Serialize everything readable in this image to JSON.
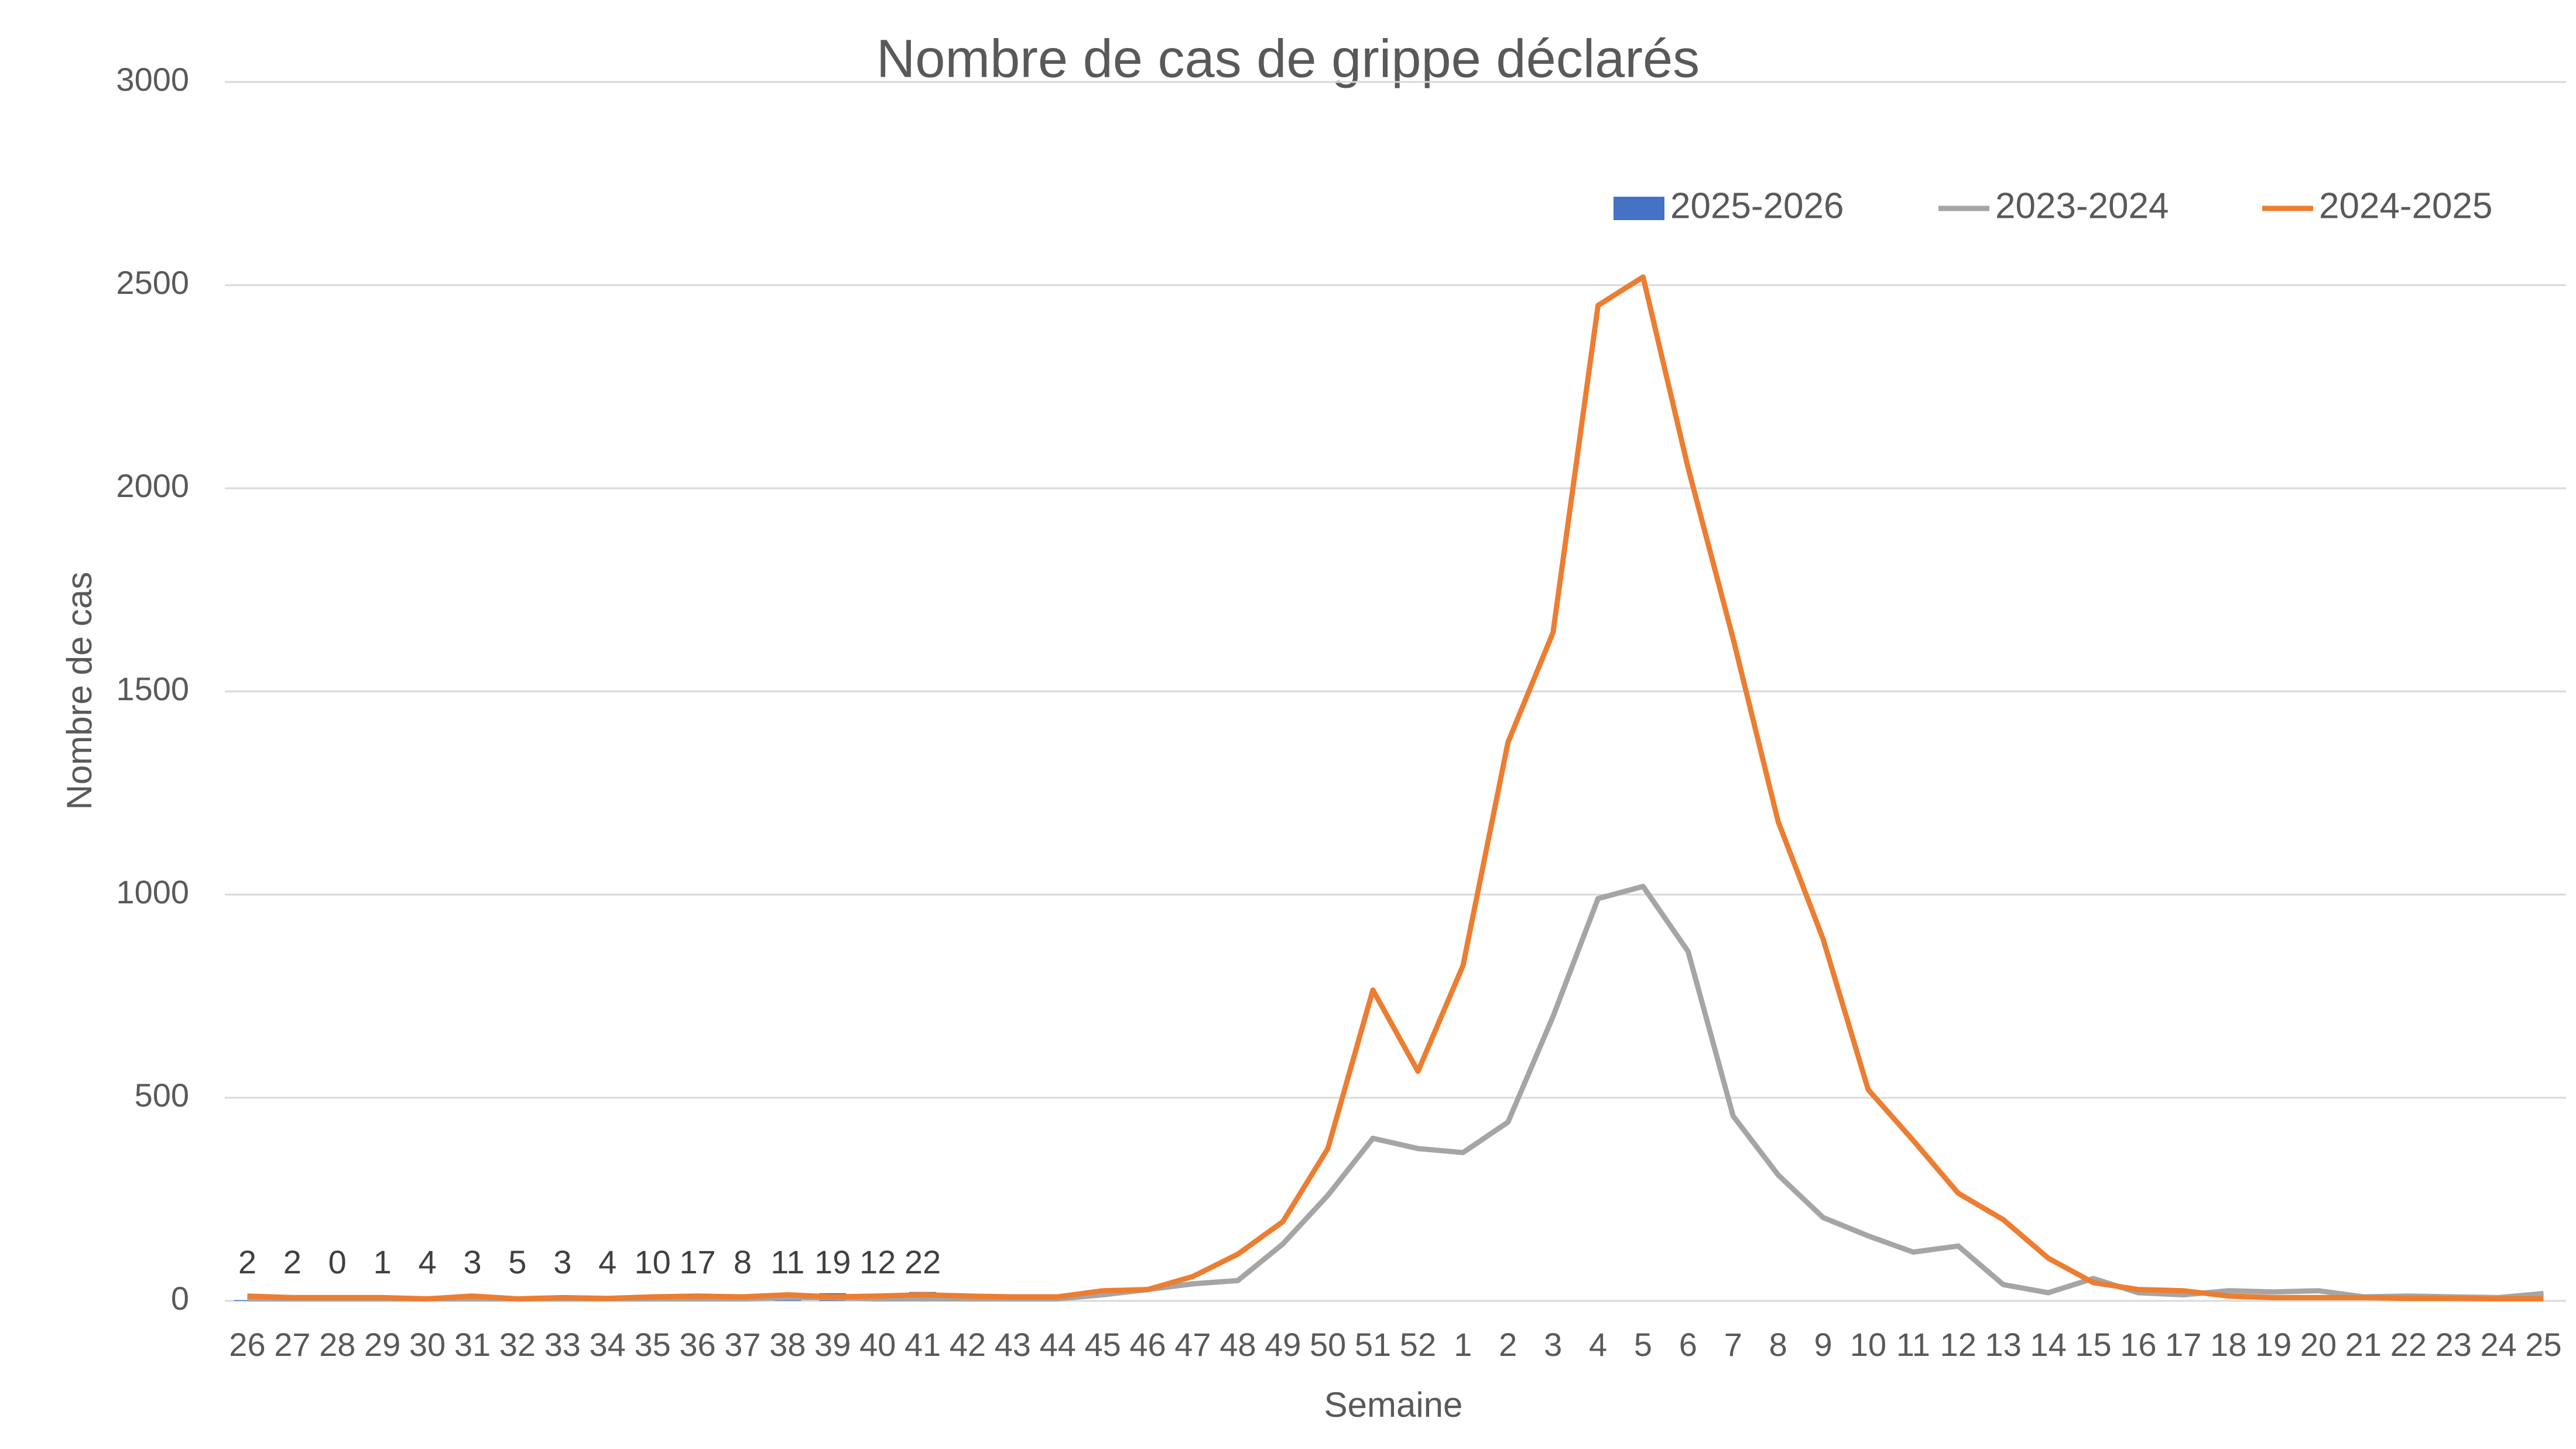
{
  "chart_data": {
    "type": "line",
    "title": "Nombre de cas de grippe déclarés",
    "x_label": "Semaine",
    "y_label": "Nombre de cas",
    "categories": [
      "26",
      "27",
      "28",
      "29",
      "30",
      "31",
      "32",
      "33",
      "34",
      "35",
      "36",
      "37",
      "38",
      "39",
      "40",
      "41",
      "42",
      "43",
      "44",
      "45",
      "46",
      "47",
      "48",
      "49",
      "50",
      "51",
      "52",
      "1",
      "2",
      "3",
      "4",
      "5",
      "6",
      "7",
      "8",
      "9",
      "10",
      "11",
      "12",
      "13",
      "14",
      "15",
      "16",
      "17",
      "18",
      "19",
      "20",
      "21",
      "22",
      "23",
      "24",
      "25"
    ],
    "series": [
      {
        "name": "2025-2026",
        "type": "bar",
        "color": "#4472c4",
        "values": [
          2,
          2,
          0,
          1,
          4,
          3,
          5,
          3,
          4,
          10,
          17,
          8,
          11,
          19,
          12,
          22,
          null,
          null,
          null,
          null,
          null,
          null,
          null,
          null,
          null,
          null,
          null,
          null,
          null,
          null,
          null,
          null,
          null,
          null,
          null,
          null,
          null,
          null,
          null,
          null,
          null,
          null,
          null,
          null,
          null,
          null,
          null,
          null,
          null,
          null,
          null,
          null
        ]
      },
      {
        "name": "2023-2024",
        "type": "line",
        "color": "#a5a5a5",
        "values": [
          5,
          5,
          5,
          5,
          5,
          5,
          5,
          5,
          5,
          5,
          5,
          5,
          8,
          8,
          5,
          5,
          5,
          5,
          5,
          15,
          28,
          42,
          50,
          140,
          260,
          400,
          375,
          365,
          440,
          700,
          990,
          1020,
          860,
          455,
          310,
          205,
          160,
          120,
          135,
          40,
          20,
          55,
          20,
          15,
          25,
          22,
          25,
          10,
          12,
          10,
          8,
          18
        ]
      },
      {
        "name": "2024-2025",
        "type": "line",
        "color": "#ed7d31",
        "values": [
          12,
          8,
          8,
          8,
          5,
          12,
          5,
          8,
          6,
          10,
          12,
          10,
          15,
          10,
          12,
          15,
          12,
          10,
          10,
          25,
          28,
          60,
          115,
          195,
          375,
          765,
          565,
          825,
          1375,
          1645,
          2450,
          2520,
          2050,
          1630,
          1180,
          890,
          520,
          395,
          265,
          200,
          105,
          45,
          28,
          25,
          12,
          8,
          8,
          8,
          6,
          6,
          5,
          5
        ]
      }
    ],
    "ylim": [
      0,
      3000
    ],
    "yticks": [
      0,
      500,
      1000,
      1500,
      2000,
      2500,
      3000
    ],
    "grid": true,
    "legend": "top"
  }
}
